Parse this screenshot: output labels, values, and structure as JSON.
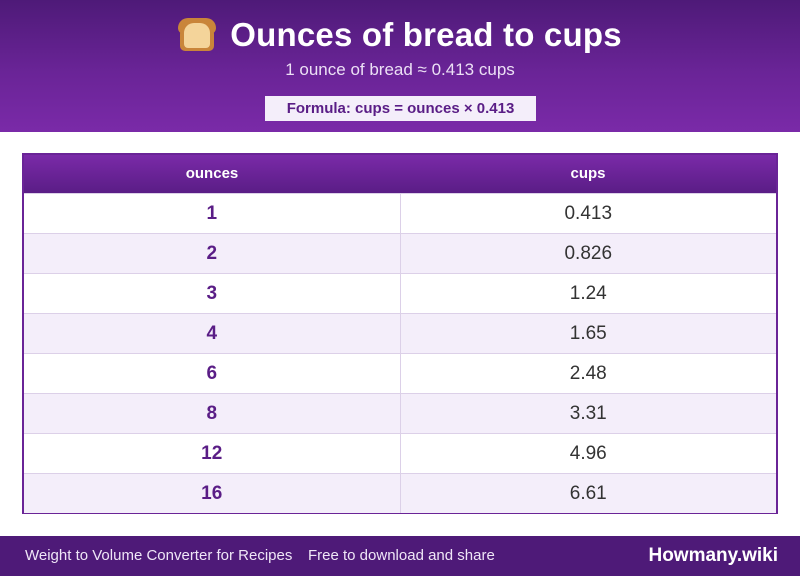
{
  "header": {
    "icon": "bread-icon",
    "title": "Ounces of bread to cups",
    "subtitle": "1 ounce of bread ≈ 0.413 cups",
    "formula": "Formula: cups = ounces × 0.413"
  },
  "table": {
    "columns": [
      "ounces",
      "cups"
    ],
    "rows": [
      {
        "ounces": "1",
        "cups": "0.413"
      },
      {
        "ounces": "2",
        "cups": "0.826"
      },
      {
        "ounces": "3",
        "cups": "1.24"
      },
      {
        "ounces": "4",
        "cups": "1.65"
      },
      {
        "ounces": "6",
        "cups": "2.48"
      },
      {
        "ounces": "8",
        "cups": "3.31"
      },
      {
        "ounces": "12",
        "cups": "4.96"
      },
      {
        "ounces": "16",
        "cups": "6.61"
      }
    ]
  },
  "footer": {
    "app_name": "Weight to Volume Converter for Recipes",
    "tagline": "Free to download and share",
    "brand": "Howmany.wiki"
  },
  "colors": {
    "header_purple": "#6a2497",
    "dark_purple": "#4e1a78",
    "row_alt": "#f4eefa"
  }
}
